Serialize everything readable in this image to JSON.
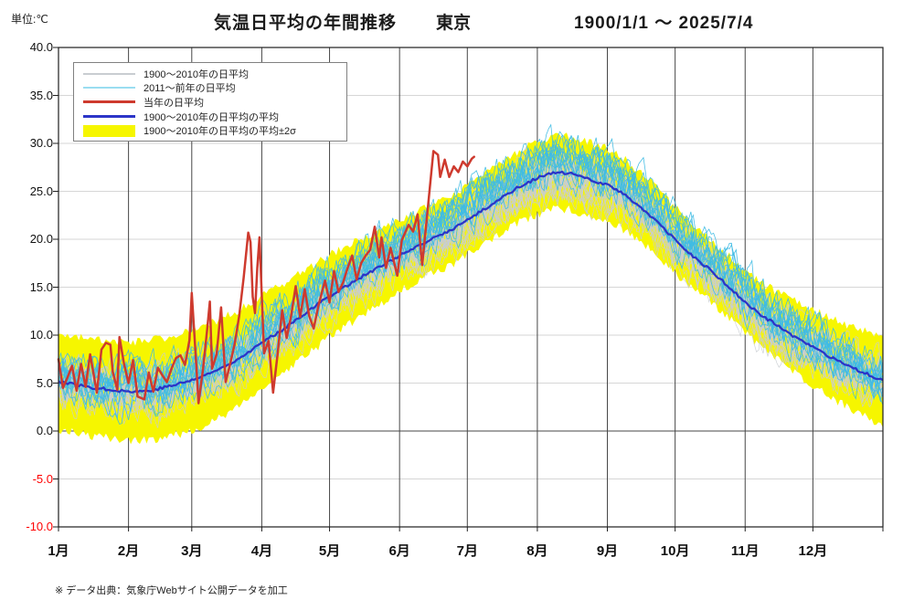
{
  "header": {
    "unit_label": "単位:℃",
    "title": "気温日平均の年間推移",
    "location": "東京",
    "period": "1900/1/1  ～  2025/7/4"
  },
  "legend": {
    "items": [
      {
        "label": "1900～2010年の日平均",
        "swatch": "line",
        "color": "#C9CDD1",
        "thickness": 2
      },
      {
        "label": "2011～前年の日平均",
        "swatch": "line",
        "color": "#9ADDF1",
        "thickness": 2
      },
      {
        "label": "当年の日平均",
        "swatch": "line",
        "color": "#CE3A2E",
        "thickness": 3
      },
      {
        "label": "1900～2010年の日平均の平均",
        "swatch": "line",
        "color": "#2C35C8",
        "thickness": 3
      },
      {
        "label": "1900～2010年の日平均の平均±2σ",
        "swatch": "band",
        "color": "#F6F600",
        "thickness": 13
      }
    ]
  },
  "footer": {
    "note": "※ データ出典：気象庁Webサイト公開データを加工"
  },
  "chart_data": {
    "type": "line",
    "title": "気温日平均の年間推移（東京） 1900/1/1～2025/7/4",
    "ylabel": "℃",
    "ylim": [
      -10,
      40
    ],
    "ytick_step": 5,
    "y_tick_labels": [
      "40.0",
      "35.0",
      "30.0",
      "25.0",
      "20.0",
      "15.0",
      "10.0",
      "5.0",
      "0.0",
      "-5.0",
      "-10.0"
    ],
    "negative_tick_color": "#FF0000",
    "x_months": [
      "1月",
      "2月",
      "3月",
      "4月",
      "5月",
      "6月",
      "7月",
      "8月",
      "9月",
      "10月",
      "11月",
      "12月"
    ],
    "month_start_days": [
      0,
      31,
      59,
      90,
      120,
      151,
      181,
      212,
      243,
      273,
      304,
      334,
      365
    ],
    "grid": {
      "vertical_color": "#474747",
      "zero_line_color": "#474747",
      "horizontal_color": "#D6D6D6",
      "border_color": "#1F1F1F"
    },
    "series_colors": {
      "historical_gray": "#C9CDD1",
      "recent_cyan": "#3FBCE4",
      "current_red": "#CE3A2E",
      "mean_blue": "#2C35C8",
      "band_yellow": "#F6F600"
    },
    "mean_1900_2010_anchors": [
      [
        0,
        5.2
      ],
      [
        8,
        4.8
      ],
      [
        16,
        4.5
      ],
      [
        24,
        4.3
      ],
      [
        32,
        4.1
      ],
      [
        40,
        4.2
      ],
      [
        48,
        4.6
      ],
      [
        59,
        5.3
      ],
      [
        67,
        6.0
      ],
      [
        74,
        6.8
      ],
      [
        82,
        7.9
      ],
      [
        90,
        9.2
      ],
      [
        98,
        10.4
      ],
      [
        105,
        11.6
      ],
      [
        113,
        12.9
      ],
      [
        120,
        14.1
      ],
      [
        128,
        15.2
      ],
      [
        135,
        16.2
      ],
      [
        143,
        17.2
      ],
      [
        151,
        18.3
      ],
      [
        159,
        19.2
      ],
      [
        166,
        20.1
      ],
      [
        174,
        21.0
      ],
      [
        181,
        22.0
      ],
      [
        189,
        23.2
      ],
      [
        196,
        24.3
      ],
      [
        204,
        25.5
      ],
      [
        212,
        26.4
      ],
      [
        219,
        26.9
      ],
      [
        226,
        26.9
      ],
      [
        234,
        26.3
      ],
      [
        243,
        25.7
      ],
      [
        251,
        24.6
      ],
      [
        258,
        23.3
      ],
      [
        265,
        21.8
      ],
      [
        273,
        19.9
      ],
      [
        281,
        18.2
      ],
      [
        288,
        16.9
      ],
      [
        296,
        15.2
      ],
      [
        304,
        13.4
      ],
      [
        311,
        12.1
      ],
      [
        319,
        10.9
      ],
      [
        326,
        9.8
      ],
      [
        334,
        8.7
      ],
      [
        341,
        7.8
      ],
      [
        349,
        6.8
      ],
      [
        356,
        6.1
      ],
      [
        364,
        5.4
      ]
    ],
    "band_halfwidth_2sigma_anchors": [
      [
        0,
        5.0
      ],
      [
        31,
        5.1
      ],
      [
        59,
        5.3
      ],
      [
        90,
        4.9
      ],
      [
        120,
        4.3
      ],
      [
        151,
        3.7
      ],
      [
        181,
        3.6
      ],
      [
        212,
        3.8
      ],
      [
        243,
        3.8
      ],
      [
        273,
        3.4
      ],
      [
        304,
        3.2
      ],
      [
        334,
        3.9
      ],
      [
        364,
        4.7
      ]
    ],
    "current_year_daily": [
      [
        0,
        7.5
      ],
      [
        2,
        4.5
      ],
      [
        4,
        5.6
      ],
      [
        6,
        6.8
      ],
      [
        8,
        4.2
      ],
      [
        10,
        7.0
      ],
      [
        12,
        4.6
      ],
      [
        14,
        8.0
      ],
      [
        17,
        4.0
      ],
      [
        19,
        8.5
      ],
      [
        21,
        9.2
      ],
      [
        23,
        9.0
      ],
      [
        24,
        6.2
      ],
      [
        26,
        4.3
      ],
      [
        27,
        9.8
      ],
      [
        29,
        7.0
      ],
      [
        31,
        5.0
      ],
      [
        33,
        7.4
      ],
      [
        35,
        3.6
      ],
      [
        38,
        3.3
      ],
      [
        40,
        6.1
      ],
      [
        42,
        4.1
      ],
      [
        44,
        6.6
      ],
      [
        46,
        5.8
      ],
      [
        48,
        5.1
      ],
      [
        50,
        6.5
      ],
      [
        52,
        7.6
      ],
      [
        54,
        7.9
      ],
      [
        56,
        6.9
      ],
      [
        58,
        9.5
      ],
      [
        59,
        14.4
      ],
      [
        61,
        7.0
      ],
      [
        62,
        2.9
      ],
      [
        64,
        6.5
      ],
      [
        66,
        11.0
      ],
      [
        67,
        13.5
      ],
      [
        68,
        6.5
      ],
      [
        70,
        8.0
      ],
      [
        72,
        12.9
      ],
      [
        74,
        5.1
      ],
      [
        76,
        7.0
      ],
      [
        78,
        9.1
      ],
      [
        80,
        12.0
      ],
      [
        82,
        16.0
      ],
      [
        84,
        20.7
      ],
      [
        85,
        19.7
      ],
      [
        86,
        14.0
      ],
      [
        87,
        12.3
      ],
      [
        88,
        17.0
      ],
      [
        89,
        20.2
      ],
      [
        91,
        8.1
      ],
      [
        93,
        9.4
      ],
      [
        95,
        4.0
      ],
      [
        97,
        8.0
      ],
      [
        99,
        12.6
      ],
      [
        101,
        9.7
      ],
      [
        103,
        12.0
      ],
      [
        105,
        15.1
      ],
      [
        107,
        11.9
      ],
      [
        109,
        14.8
      ],
      [
        111,
        12.0
      ],
      [
        113,
        10.7
      ],
      [
        115,
        13.0
      ],
      [
        118,
        15.7
      ],
      [
        120,
        13.4
      ],
      [
        122,
        16.7
      ],
      [
        124,
        14.5
      ],
      [
        126,
        15.5
      ],
      [
        128,
        17.0
      ],
      [
        130,
        18.3
      ],
      [
        132,
        15.8
      ],
      [
        134,
        17.5
      ],
      [
        136,
        18.3
      ],
      [
        138,
        18.9
      ],
      [
        140,
        21.3
      ],
      [
        142,
        18.1
      ],
      [
        143,
        20.2
      ],
      [
        145,
        17.0
      ],
      [
        147,
        19.1
      ],
      [
        150,
        16.2
      ],
      [
        152,
        19.9
      ],
      [
        155,
        21.5
      ],
      [
        157,
        20.8
      ],
      [
        159,
        22.6
      ],
      [
        161,
        17.3
      ],
      [
        163,
        22.0
      ],
      [
        166,
        29.2
      ],
      [
        168,
        28.8
      ],
      [
        169,
        26.5
      ],
      [
        171,
        28.3
      ],
      [
        173,
        26.5
      ],
      [
        175,
        27.6
      ],
      [
        177,
        27.0
      ],
      [
        179,
        28.1
      ],
      [
        181,
        27.6
      ],
      [
        183,
        28.4
      ],
      [
        184,
        28.6
      ]
    ],
    "background_series": {
      "gray_years_count": 22,
      "cyan_years_count": 14,
      "noise_step_amp": 1.65,
      "noise_persistence": 0.72,
      "cyan_base_offset": 0.4,
      "cyan_summer_extra": 0.9,
      "band_edge_jitter": 0.45
    }
  }
}
